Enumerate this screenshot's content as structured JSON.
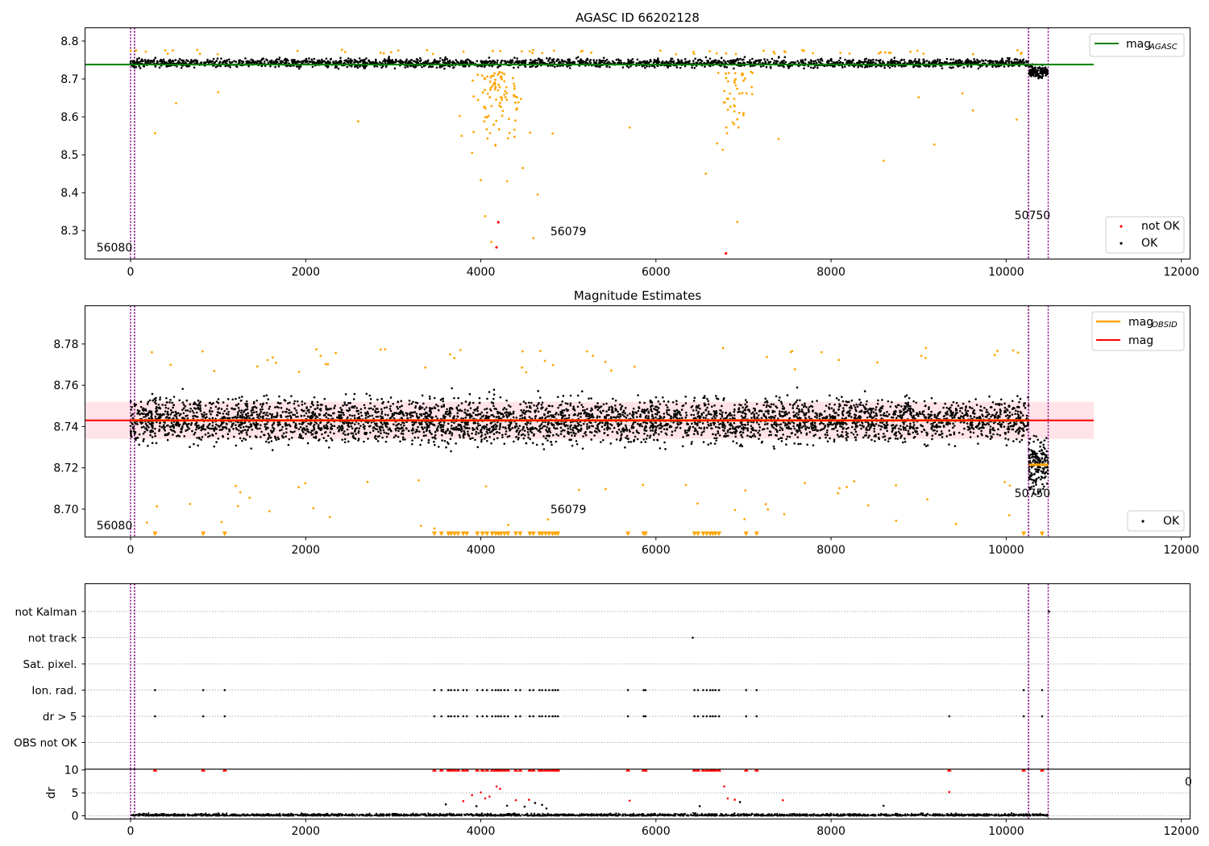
{
  "figure": {
    "title": "AGASC ID 66202128",
    "subtitle": "Magnitude Estimates",
    "x_tick_labels": [
      "0",
      "2000",
      "4000",
      "6000",
      "8000",
      "10000",
      "12000"
    ],
    "x_range": [
      -520,
      12100
    ],
    "clipped_tick_label": "0",
    "obsid_boundaries": [
      {
        "label": "56080",
        "x_start": 0,
        "x_end": 45
      },
      {
        "label": "56079",
        "x_start": 45,
        "x_end": 10255
      },
      {
        "label": "50750",
        "x_start": 10255,
        "x_end": 10480
      }
    ]
  },
  "chart_data": [
    {
      "type": "scatter",
      "name": "agasc-panel",
      "title": "AGASC ID 66202128",
      "xlabel": "",
      "ylabel": "",
      "xlim": [
        -520,
        12100
      ],
      "ylim": [
        8.225,
        8.835
      ],
      "y_ticks": [
        "8.3",
        "8.4",
        "8.5",
        "8.6",
        "8.7",
        "8.8"
      ],
      "reference_line": {
        "label": "mag",
        "label_subscript": "AGASC",
        "value": 8.738,
        "x_range": [
          0,
          11000
        ],
        "color": "#008000"
      },
      "ok_band": {
        "center": 8.742,
        "spread": 0.018
      },
      "dips": [
        {
          "center": 4200,
          "width": 420,
          "count": 95
        },
        {
          "center": 6900,
          "width": 260,
          "count": 45
        }
      ],
      "scatter_outliers": [
        [
          280,
          8.557
        ],
        [
          520,
          8.636
        ],
        [
          1000,
          8.665
        ],
        [
          2600,
          8.588
        ],
        [
          3780,
          8.55
        ],
        [
          3900,
          8.505
        ],
        [
          4000,
          8.433
        ],
        [
          4050,
          8.338
        ],
        [
          4120,
          8.27
        ],
        [
          4300,
          8.43
        ],
        [
          4480,
          8.465
        ],
        [
          4600,
          8.28
        ],
        [
          4650,
          8.395
        ],
        [
          4820,
          8.556
        ],
        [
          5700,
          8.572
        ],
        [
          6570,
          8.45
        ],
        [
          6700,
          8.53
        ],
        [
          6930,
          8.323
        ],
        [
          7400,
          8.542
        ],
        [
          8600,
          8.484
        ],
        [
          9180,
          8.527
        ],
        [
          9620,
          8.617
        ],
        [
          10120,
          8.593
        ],
        [
          9500,
          8.662
        ],
        [
          9000,
          8.652
        ]
      ],
      "not_ok_points": [
        [
          4200,
          8.322
        ],
        [
          4180,
          8.256
        ],
        [
          6800,
          8.24
        ]
      ],
      "legend": {
        "position": "lower-right",
        "entries": [
          "not OK",
          "OK"
        ]
      },
      "series_colors": {
        "ok": "#000000",
        "not_ok": "#ff0000",
        "flagged": "#ffa500"
      }
    },
    {
      "type": "scatter",
      "name": "magnitude-estimates-panel",
      "title": "Magnitude Estimates",
      "xlabel": "",
      "ylabel": "",
      "xlim": [
        -520,
        12100
      ],
      "ylim": [
        8.6865,
        8.7985
      ],
      "y_ticks": [
        "8.70",
        "8.72",
        "8.74",
        "8.76",
        "8.78"
      ],
      "mag_line": {
        "label": "mag",
        "value": 8.743,
        "x_range": [
          0,
          11000
        ],
        "color": "#ff0000"
      },
      "mag_band": {
        "low": 8.734,
        "high": 8.752,
        "x_range": [
          -520,
          11000
        ]
      },
      "obsid_mag_segments": [
        {
          "x_range": [
            0,
            10255
          ],
          "value": 8.743
        },
        {
          "x_range": [
            10260,
            10480
          ],
          "value": 8.7215
        }
      ],
      "obsid_legend_label": "mag",
      "obsid_legend_subscript": "OBSID",
      "clipped_marker_value": 8.688,
      "legend": {
        "position": "lower-right",
        "entries": [
          "OK"
        ]
      },
      "top_legend": {
        "position": "top-right",
        "entries": [
          "mag_OBSID",
          "mag"
        ]
      }
    },
    {
      "type": "scatter",
      "name": "flags-panel",
      "title": "",
      "xlabel": "",
      "ylabel": "",
      "xlim": [
        -520,
        12100
      ],
      "categories": [
        "not Kalman",
        "not track",
        "Sat. pixel.",
        "Ion. rad.",
        "dr > 5",
        "OBS not OK"
      ],
      "flag_points": {
        "not track": [
          6420
        ],
        "not Kalman": [
          10490
        ],
        "Ion. rad.": [
          280,
          830,
          1075,
          3470,
          3550,
          3630,
          3660,
          3700,
          3740,
          3800,
          3840,
          3960,
          4020,
          4070,
          4130,
          4170,
          4200,
          4230,
          4270,
          4310,
          4400,
          4450,
          4560,
          4600,
          4670,
          4700,
          4740,
          4780,
          4820,
          4850,
          4880,
          5680,
          5860,
          5880,
          6440,
          6480,
          6540,
          6580,
          6620,
          6650,
          6680,
          6720,
          7030,
          7150,
          10200,
          10410
        ],
        "dr > 5": [
          280,
          830,
          1075,
          3470,
          3550,
          3630,
          3660,
          3700,
          3740,
          3800,
          3840,
          3960,
          4020,
          4070,
          4130,
          4170,
          4200,
          4230,
          4270,
          4310,
          4400,
          4450,
          4560,
          4600,
          4670,
          4700,
          4740,
          4780,
          4820,
          4850,
          4880,
          5680,
          5860,
          5880,
          6440,
          6480,
          6540,
          6580,
          6620,
          6650,
          6680,
          6720,
          7030,
          7150,
          9350,
          10200,
          10410
        ]
      }
    },
    {
      "type": "scatter",
      "name": "dr-panel",
      "title": "",
      "xlabel": "",
      "ylabel": "dr",
      "xlim": [
        -520,
        12100
      ],
      "ylim": [
        -0.7,
        10.2
      ],
      "y_ticks": [
        "0",
        "5",
        "10"
      ],
      "clip_value": 10,
      "outliers": [
        [
          3600,
          2.5
        ],
        [
          3800,
          3.2
        ],
        [
          3900,
          4.5
        ],
        [
          3950,
          2.1
        ],
        [
          4000,
          5.1
        ],
        [
          4050,
          3.8
        ],
        [
          4100,
          4.2
        ],
        [
          4180,
          6.4
        ],
        [
          4220,
          5.9
        ],
        [
          4300,
          2.2
        ],
        [
          4400,
          3.4
        ],
        [
          4500,
          2.0
        ],
        [
          4550,
          3.5
        ],
        [
          4620,
          2.8
        ],
        [
          4700,
          2.4
        ],
        [
          4750,
          1.6
        ],
        [
          5700,
          3.3
        ],
        [
          6500,
          2.1
        ],
        [
          6780,
          6.4
        ],
        [
          6820,
          3.8
        ],
        [
          6900,
          3.5
        ],
        [
          6960,
          3.0
        ],
        [
          7450,
          3.4
        ],
        [
          8600,
          2.2
        ],
        [
          9350,
          5.2
        ]
      ]
    }
  ]
}
